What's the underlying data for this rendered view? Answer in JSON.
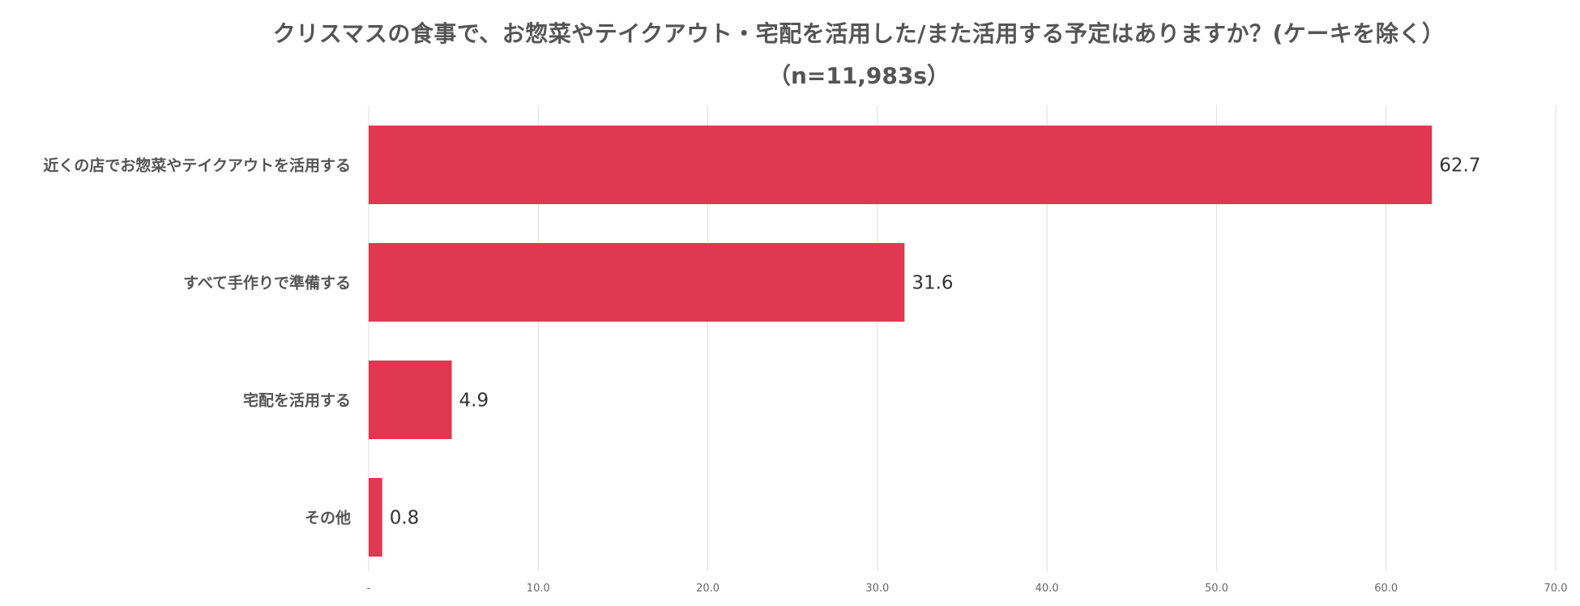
{
  "chart_data": {
    "type": "bar",
    "orientation": "horizontal",
    "title": "クリスマスの食事で、お惣菜やテイクアウト・宅配を活用した/また活用する予定はありますか？(ケーキを除く）",
    "subtitle": "（n=11,983s）",
    "categories": [
      "近くの店でお惣菜やテイクアウトを活用する",
      "すべて手作りで準備する",
      "宅配を活用する",
      "その他"
    ],
    "values": [
      62.7,
      31.6,
      4.9,
      0.8
    ],
    "value_labels": [
      "62.7",
      "31.6",
      "4.9",
      "0.8"
    ],
    "xlim": [
      0,
      70
    ],
    "x_ticks": [
      0,
      10,
      20,
      30,
      40,
      50,
      60,
      70
    ],
    "x_tick_labels": [
      "-",
      "10.0",
      "20.0",
      "30.0",
      "40.0",
      "50.0",
      "60.0",
      "70.0"
    ],
    "grid": "vertical",
    "legend": "none",
    "bar_color": "#e03850",
    "grid_color": "#dddddd"
  }
}
